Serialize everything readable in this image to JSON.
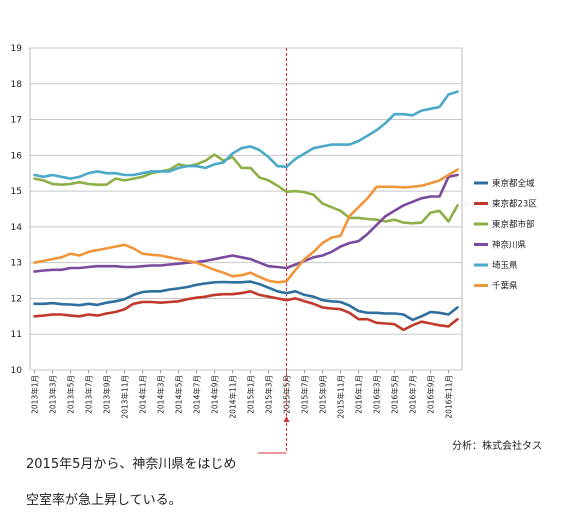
{
  "chart_data": {
    "type": "line",
    "title": "",
    "xlabel": "",
    "ylabel": "",
    "ylim": [
      10,
      19
    ],
    "yticks": [
      10,
      11,
      12,
      13,
      14,
      15,
      16,
      17,
      18,
      19
    ],
    "grid": true,
    "legend_placement": "right",
    "x": [
      "2013年1月",
      "2013年2月",
      "2013年3月",
      "2013年4月",
      "2013年5月",
      "2013年6月",
      "2013年7月",
      "2013年8月",
      "2013年9月",
      "2013年10月",
      "2013年11月",
      "2013年12月",
      "2014年1月",
      "2014年2月",
      "2014年3月",
      "2014年4月",
      "2014年5月",
      "2014年6月",
      "2014年7月",
      "2014年8月",
      "2014年9月",
      "2014年10月",
      "2014年11月",
      "2014年12月",
      "2015年1月",
      "2015年2月",
      "2015年3月",
      "2015年4月",
      "2015年5月",
      "2015年6月",
      "2015年7月",
      "2015年8月",
      "2015年9月",
      "2015年10月",
      "2015年11月",
      "2015年12月",
      "2016年1月",
      "2016年2月",
      "2016年3月",
      "2016年4月",
      "2016年5月",
      "2016年6月",
      "2016年7月",
      "2016年8月",
      "2016年9月",
      "2016年10月",
      "2016年11月",
      "2016年12月"
    ],
    "xtick_labels": [
      "2013年1月",
      "2013年3月",
      "2013年5月",
      "2013年7月",
      "2013年9月",
      "2013年11月",
      "2014年1月",
      "2014年3月",
      "2014年5月",
      "2014年7月",
      "2014年9月",
      "2014年11月",
      "2015年1月",
      "2015年3月",
      "2015年5月",
      "2015年7月",
      "2015年9月",
      "2015年11月",
      "2016年1月",
      "2016年3月",
      "2016年5月",
      "2016年7月",
      "2016年9月",
      "2016年11月"
    ],
    "series": [
      {
        "name": "東京都全域",
        "color": "#2e6f9e",
        "values": [
          11.85,
          11.85,
          11.87,
          11.84,
          11.83,
          11.81,
          11.85,
          11.82,
          11.88,
          11.92,
          11.98,
          12.1,
          12.18,
          12.2,
          12.2,
          12.25,
          12.28,
          12.32,
          12.38,
          12.42,
          12.45,
          12.46,
          12.45,
          12.45,
          12.47,
          12.4,
          12.3,
          12.2,
          12.15,
          12.2,
          12.1,
          12.05,
          11.95,
          11.92,
          11.9,
          11.8,
          11.65,
          11.6,
          11.6,
          11.58,
          11.58,
          11.55,
          11.4,
          11.5,
          11.62,
          11.6,
          11.55,
          11.75
        ]
      },
      {
        "name": "東京都23区",
        "color": "#c0392b",
        "values": [
          11.5,
          11.52,
          11.55,
          11.55,
          11.52,
          11.5,
          11.55,
          11.52,
          11.58,
          11.62,
          11.7,
          11.85,
          11.9,
          11.9,
          11.88,
          11.9,
          11.92,
          11.98,
          12.02,
          12.05,
          12.1,
          12.12,
          12.12,
          12.15,
          12.2,
          12.1,
          12.05,
          12.0,
          11.95,
          12.0,
          11.92,
          11.85,
          11.75,
          11.72,
          11.7,
          11.6,
          11.42,
          11.42,
          11.32,
          11.3,
          11.28,
          11.12,
          11.25,
          11.35,
          11.3,
          11.25,
          11.22,
          11.42
        ]
      },
      {
        "name": "東京都市部",
        "color": "#8cb045",
        "values": [
          15.35,
          15.3,
          15.2,
          15.18,
          15.2,
          15.25,
          15.2,
          15.18,
          15.18,
          15.35,
          15.3,
          15.35,
          15.4,
          15.5,
          15.55,
          15.6,
          15.75,
          15.7,
          15.75,
          15.85,
          16.02,
          15.85,
          15.95,
          15.65,
          15.65,
          15.38,
          15.3,
          15.15,
          14.98,
          15.0,
          14.97,
          14.9,
          14.65,
          14.55,
          14.45,
          14.25,
          14.25,
          14.22,
          14.2,
          14.15,
          14.2,
          14.12,
          14.1,
          14.12,
          14.4,
          14.45,
          14.15,
          14.6
        ]
      },
      {
        "name": "神奈川県",
        "color": "#7b4a9e",
        "values": [
          12.75,
          12.78,
          12.8,
          12.8,
          12.85,
          12.85,
          12.88,
          12.9,
          12.9,
          12.9,
          12.88,
          12.88,
          12.9,
          12.92,
          12.92,
          12.95,
          12.97,
          13.0,
          13.02,
          13.05,
          13.1,
          13.15,
          13.2,
          13.15,
          13.1,
          13.0,
          12.9,
          12.88,
          12.85,
          12.95,
          13.05,
          13.15,
          13.2,
          13.3,
          13.45,
          13.55,
          13.6,
          13.8,
          14.05,
          14.3,
          14.45,
          14.6,
          14.7,
          14.8,
          14.85,
          14.85,
          15.4,
          15.45
        ]
      },
      {
        "name": "埼玉県",
        "color": "#4aa8c8",
        "values": [
          15.45,
          15.4,
          15.45,
          15.4,
          15.35,
          15.4,
          15.5,
          15.55,
          15.5,
          15.5,
          15.45,
          15.45,
          15.5,
          15.55,
          15.55,
          15.55,
          15.65,
          15.7,
          15.7,
          15.65,
          15.75,
          15.8,
          16.05,
          16.2,
          16.25,
          16.15,
          15.95,
          15.7,
          15.68,
          15.9,
          16.05,
          16.2,
          16.25,
          16.3,
          16.3,
          16.3,
          16.4,
          16.55,
          16.7,
          16.9,
          17.15,
          17.15,
          17.12,
          17.25,
          17.3,
          17.35,
          17.7,
          17.78
        ]
      },
      {
        "name": "千葉県",
        "color": "#f0963a",
        "values": [
          13.0,
          13.05,
          13.1,
          13.15,
          13.25,
          13.2,
          13.3,
          13.35,
          13.4,
          13.45,
          13.5,
          13.4,
          13.25,
          13.22,
          13.2,
          13.15,
          13.1,
          13.05,
          13.0,
          12.9,
          12.8,
          12.72,
          12.62,
          12.65,
          12.72,
          12.6,
          12.5,
          12.45,
          12.48,
          12.8,
          13.1,
          13.3,
          13.55,
          13.7,
          13.75,
          14.3,
          14.55,
          14.8,
          15.12,
          15.12,
          15.12,
          15.1,
          15.12,
          15.15,
          15.22,
          15.3,
          15.45,
          15.6
        ]
      }
    ],
    "marker_x": "2015年5月"
  },
  "annotation": {
    "line1": "2015年5月から、神奈川県をはじめ",
    "line2": "空室率が急上昇している。"
  },
  "source": "分析：株式会社タス"
}
